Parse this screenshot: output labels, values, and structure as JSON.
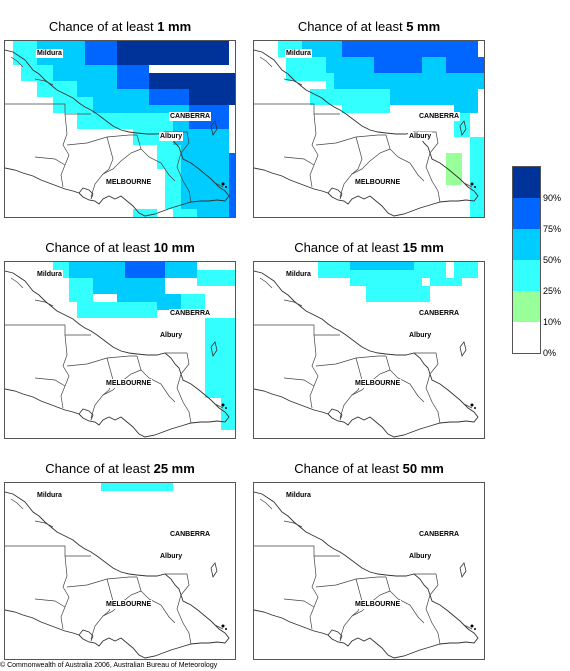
{
  "panels": [
    {
      "title_prefix": "Chance of at least ",
      "amount": "1 mm",
      "bands": [
        {
          "level": 5,
          "cells": [
            [
              14,
              0,
              14,
              3
            ],
            [
              18,
              4,
              11,
              2
            ],
            [
              23,
              6,
              6,
              2
            ]
          ]
        },
        {
          "level": 4,
          "cells": [
            [
              10,
              0,
              4,
              3
            ],
            [
              14,
              3,
              4,
              3
            ],
            [
              18,
              6,
              5,
              2
            ],
            [
              23,
              8,
              5,
              6
            ],
            [
              28,
              14,
              1,
              8
            ]
          ]
        },
        {
          "level": 3,
          "cells": [
            [
              4,
              0,
              6,
              3
            ],
            [
              6,
              3,
              8,
              3
            ],
            [
              9,
              6,
              9,
              2
            ],
            [
              11,
              8,
              12,
              3
            ],
            [
              21,
              11,
              7,
              4
            ],
            [
              22,
              15,
              6,
              7
            ],
            [
              24,
              22,
              4,
              2
            ],
            [
              14,
              23,
              3,
              2
            ]
          ]
        },
        {
          "level": 2,
          "cells": [
            [
              1,
              0,
              3,
              3
            ],
            [
              2,
              3,
              4,
              2
            ],
            [
              4,
              5,
              5,
              2
            ],
            [
              6,
              7,
              5,
              2
            ],
            [
              9,
              9,
              12,
              2
            ],
            [
              16,
              11,
              5,
              2
            ],
            [
              19,
              13,
              3,
              3
            ],
            [
              20,
              16,
              2,
              5
            ],
            [
              21,
              21,
              3,
              2
            ],
            [
              27,
              22,
              2,
              2
            ],
            [
              16,
              21,
              3,
              2
            ],
            [
              8,
              24,
              2,
              1
            ],
            [
              16,
              25,
              2,
              2
            ]
          ]
        }
      ]
    },
    {
      "title_prefix": "Chance of at least ",
      "amount": "5 mm",
      "bands": [
        {
          "level": 4,
          "cells": [
            [
              11,
              0,
              17,
              2
            ],
            [
              15,
              2,
              6,
              2
            ],
            [
              24,
              2,
              5,
              2
            ]
          ]
        },
        {
          "level": 3,
          "cells": [
            [
              6,
              0,
              5,
              2
            ],
            [
              9,
              2,
              6,
              2
            ],
            [
              21,
              2,
              3,
              2
            ],
            [
              10,
              4,
              19,
              2
            ],
            [
              17,
              6,
              8,
              2
            ],
            [
              25,
              6,
              3,
              3
            ]
          ]
        },
        {
          "level": 2,
          "cells": [
            [
              3,
              0,
              3,
              2
            ],
            [
              4,
              2,
              5,
              3
            ],
            [
              9,
              4,
              1,
              2
            ],
            [
              7,
              6,
              10,
              2
            ],
            [
              11,
              8,
              6,
              1
            ],
            [
              25,
              9,
              2,
              3
            ],
            [
              27,
              12,
              2,
              12
            ]
          ]
        },
        {
          "level": 1,
          "cells": [
            [
              24,
              14,
              2,
              4
            ]
          ]
        }
      ]
    },
    {
      "title_prefix": "Chance of at least ",
      "amount": "10 mm",
      "bands": [
        {
          "level": 4,
          "cells": [
            [
              15,
              0,
              5,
              2
            ]
          ]
        },
        {
          "level": 3,
          "cells": [
            [
              8,
              0,
              7,
              2
            ],
            [
              11,
              2,
              9,
              2
            ],
            [
              20,
              0,
              4,
              2
            ],
            [
              14,
              4,
              8,
              2
            ]
          ]
        },
        {
          "level": 2,
          "cells": [
            [
              6,
              0,
              2,
              2
            ],
            [
              8,
              2,
              3,
              3
            ],
            [
              9,
              5,
              10,
              2
            ],
            [
              22,
              4,
              3,
              3
            ],
            [
              24,
              1,
              5,
              2
            ],
            [
              25,
              7,
              4,
              10
            ],
            [
              27,
              17,
              2,
              4
            ]
          ]
        }
      ]
    },
    {
      "title_prefix": "Chance of at least ",
      "amount": "15 mm",
      "bands": [
        {
          "level": 3,
          "cells": [
            [
              12,
              0,
              8,
              1
            ]
          ]
        },
        {
          "level": 2,
          "cells": [
            [
              8,
              0,
              4,
              2
            ],
            [
              12,
              1,
              9,
              2
            ],
            [
              20,
              0,
              4,
              2
            ],
            [
              14,
              3,
              8,
              2
            ],
            [
              22,
              2,
              4,
              1
            ],
            [
              25,
              0,
              3,
              2
            ]
          ]
        }
      ]
    },
    {
      "title_prefix": "Chance of at least ",
      "amount": "25 mm",
      "bands": [
        {
          "level": 2,
          "cells": [
            [
              12,
              0,
              9,
              1
            ]
          ]
        }
      ]
    },
    {
      "title_prefix": "Chance of at least ",
      "amount": "50 mm",
      "bands": []
    }
  ],
  "places": [
    "Mildura",
    "CANBERRA",
    "Albury",
    "MELBOURNE"
  ],
  "legend": {
    "colors": [
      "#ffffff",
      "#99ff99",
      "#33ffff",
      "#00ccff",
      "#0066ff",
      "#003399"
    ],
    "labels": [
      "0%",
      "10%",
      "25%",
      "50%",
      "75%",
      "90%"
    ]
  },
  "copyright": "© Commonwealth of Australia 2006, Australian Bureau of Meteorology"
}
